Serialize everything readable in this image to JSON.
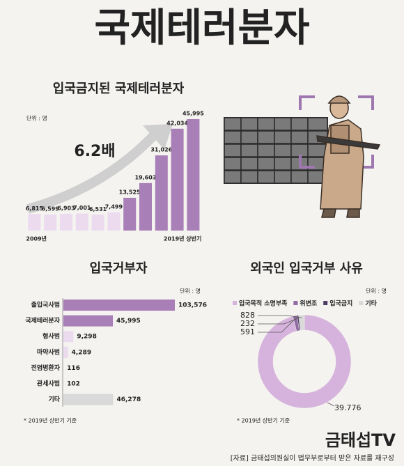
{
  "header": {
    "title": "국제테러분자"
  },
  "chart_data": [
    {
      "type": "bar",
      "title": "입국금지된 국제테러분자",
      "unit": "단위 : 명",
      "annotation": "6.2배",
      "categories": [
        "2009년",
        null,
        null,
        null,
        null,
        null,
        null,
        null,
        null,
        null,
        "2019년 상반기"
      ],
      "values": [
        6815,
        6599,
        6903,
        7001,
        6531,
        7499,
        13525,
        19603,
        31026,
        42034,
        45995
      ],
      "value_labels": [
        "6,815",
        "6,599",
        "6,903",
        "7,001",
        "6,531",
        "7,499",
        "13,525",
        "19,603",
        "31,026",
        "42,034",
        "45,995"
      ],
      "colors": [
        "#ecdaee",
        "#ecdaee",
        "#ecdaee",
        "#ecdaee",
        "#ecdaee",
        "#ecdaee",
        "#a97fb8",
        "#a97fb8",
        "#a97fb8",
        "#a97fb8",
        "#a97fb8"
      ]
    },
    {
      "type": "hbar",
      "title": "입국거부자",
      "unit": "단위 : 명",
      "note": "* 2019년 상반기 기준",
      "categories": [
        "출입국사범",
        "국제테러분자",
        "형사범",
        "마약사범",
        "전염병환자",
        "관세사범",
        "기타"
      ],
      "values": [
        103576,
        45995,
        9298,
        4289,
        116,
        102,
        46278
      ],
      "value_labels": [
        "103,576",
        "45,995",
        "9,298",
        "4,289",
        "116",
        "102",
        "46,278"
      ],
      "colors": [
        "#a97fb8",
        "#a97fb8",
        "#ecdaee",
        "#ecdaee",
        "#ecdaee",
        "#ecdaee",
        "#d9d9d9"
      ]
    },
    {
      "type": "pie",
      "donut": true,
      "title": "외국인 입국거부 사유",
      "unit": "단위 : 명",
      "note": "* 2019년 상반기 기준",
      "categories": [
        "입국목적 소명부족",
        "위변조",
        "입국금지",
        "기타"
      ],
      "values": [
        39776,
        591,
        232,
        828
      ],
      "value_labels": [
        "39.776",
        "591",
        "232",
        "828"
      ],
      "colors": [
        "#d6b3dc",
        "#8f6aa3",
        "#4e3e66",
        "#d9d9d9"
      ]
    }
  ],
  "footer": {
    "brand": "금태섭TV",
    "source": "[자료] 금태섭의원실이 법무부로부터 받은 자료를 재구성"
  }
}
